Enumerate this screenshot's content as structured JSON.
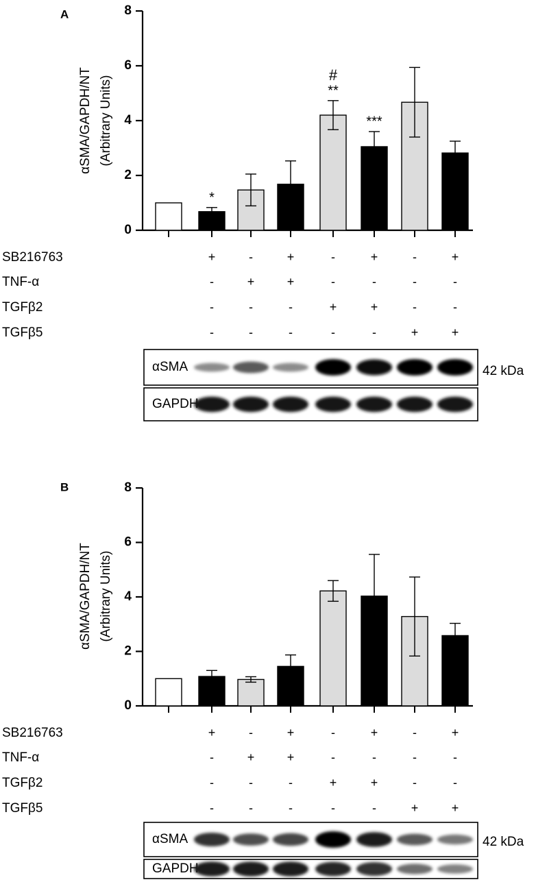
{
  "chart_data": [
    {
      "type": "bar",
      "panel_label": "A",
      "ylabel_line1": "αSMA/GAPDH/NT",
      "ylabel_line2": "(Arbitrary Units)",
      "ylim": [
        0,
        8
      ],
      "yticks": [
        "0",
        "2",
        "4",
        "6",
        "8"
      ],
      "bar_fills": [
        "#ffffff",
        "#000000",
        "#dcdcdc",
        "#000000",
        "#dcdcdc",
        "#000000",
        "#dcdcdc",
        "#000000"
      ],
      "values": [
        1.0,
        0.68,
        1.47,
        1.68,
        4.2,
        3.05,
        4.67,
        2.82
      ],
      "errors": [
        0.0,
        0.15,
        0.58,
        0.85,
        0.53,
        0.55,
        1.27,
        0.43
      ],
      "annotations": [
        "",
        "*",
        "",
        "",
        "#\n**",
        "***",
        "",
        ""
      ],
      "conditions": [
        {
          "label": "SB216763",
          "signs": [
            "",
            "+",
            "-",
            "+",
            "-",
            "+",
            "-",
            "+"
          ]
        },
        {
          "label": "TNF-α",
          "signs": [
            "",
            "-",
            "+",
            "+",
            "-",
            "-",
            "-",
            "-"
          ]
        },
        {
          "label": "TGFβ2",
          "signs": [
            "",
            "-",
            "-",
            "-",
            "+",
            "+",
            "-",
            "-"
          ]
        },
        {
          "label": "TGFβ5",
          "signs": [
            "",
            "-",
            "-",
            "-",
            "-",
            "-",
            "+",
            "+"
          ]
        }
      ],
      "blot": {
        "rows": [
          {
            "label": "αSMA",
            "intensity": [
              0.55,
              0.3,
              0.55,
              0.3,
              1.0,
              0.95,
              1.0,
              1.0
            ]
          },
          {
            "label": "GAPDH",
            "intensity": [
              0.9,
              0.9,
              0.9,
              0.9,
              0.9,
              0.9,
              0.9,
              0.9
            ]
          }
        ],
        "size_marker": "42 kDa"
      }
    },
    {
      "type": "bar",
      "panel_label": "B",
      "ylabel_line1": "αSMA/GAPDH/NT",
      "ylabel_line2": "(Arbitrary Units)",
      "ylim": [
        0,
        8
      ],
      "yticks": [
        "0",
        "2",
        "4",
        "6",
        "8"
      ],
      "bar_fills": [
        "#ffffff",
        "#000000",
        "#dcdcdc",
        "#000000",
        "#dcdcdc",
        "#000000",
        "#dcdcdc",
        "#000000"
      ],
      "values": [
        1.0,
        1.08,
        0.97,
        1.45,
        4.22,
        4.03,
        3.28,
        2.58
      ],
      "errors": [
        0.0,
        0.22,
        0.1,
        0.42,
        0.38,
        1.53,
        1.45,
        0.45
      ],
      "annotations": [
        "",
        "",
        "",
        "",
        "",
        "",
        "",
        ""
      ],
      "conditions": [
        {
          "label": "SB216763",
          "signs": [
            "",
            "+",
            "-",
            "+",
            "-",
            "+",
            "-",
            "+"
          ]
        },
        {
          "label": "TNF-α",
          "signs": [
            "",
            "-",
            "+",
            "+",
            "-",
            "-",
            "-",
            "-"
          ]
        },
        {
          "label": "TGFβ2",
          "signs": [
            "",
            "-",
            "-",
            "-",
            "+",
            "+",
            "-",
            "-"
          ]
        },
        {
          "label": "TGFβ5",
          "signs": [
            "",
            "-",
            "-",
            "-",
            "-",
            "-",
            "+",
            "+"
          ]
        }
      ],
      "blot": {
        "rows": [
          {
            "label": "αSMA",
            "intensity": [
              0.75,
              0.75,
              0.6,
              0.65,
              1.0,
              0.85,
              0.55,
              0.4
            ]
          },
          {
            "label": "GAPDH",
            "intensity": [
              0.85,
              0.85,
              0.85,
              0.85,
              0.8,
              0.75,
              0.45,
              0.35
            ]
          }
        ],
        "size_marker": "42 kDa"
      }
    }
  ]
}
